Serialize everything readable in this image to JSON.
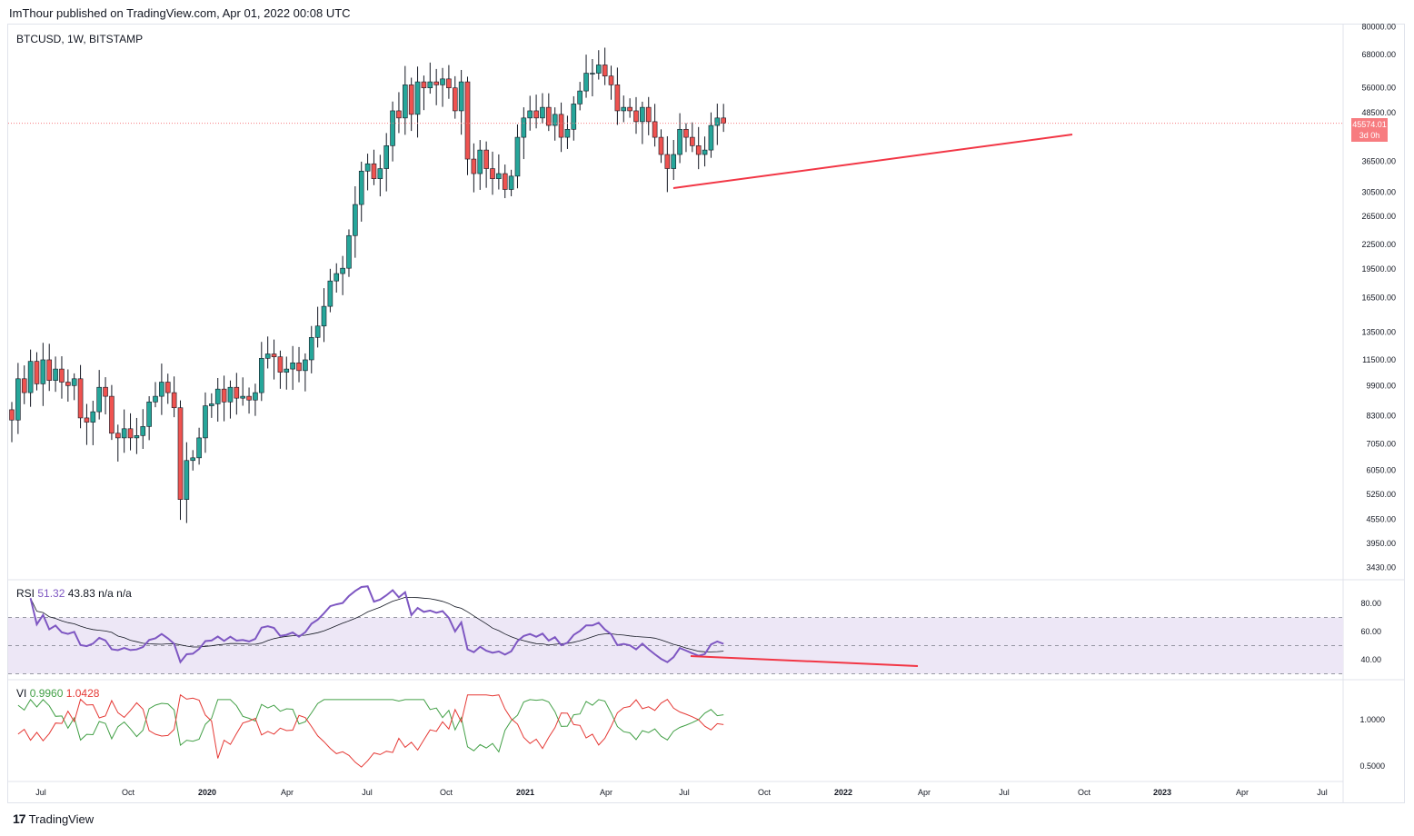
{
  "header": {
    "publisher_line": "ImThour published on TradingView.com, Apr 01, 2022 00:08 UTC"
  },
  "colors": {
    "up": "#26a69a",
    "down": "#ef5350",
    "rsi": "#7e57c2",
    "rsi_ma": "#131722",
    "vi_plus": "#43a047",
    "vi_minus": "#e53935",
    "trendline": "#f23645",
    "band": "#ede7f6"
  },
  "chart_data": [
    {
      "type": "candlestick",
      "title": "BTCUSD, 1W, BITSTAMP",
      "scale": "log",
      "y_ticks": [
        "80000.00",
        "68000.00",
        "56000.00",
        "48500.00",
        "36500.00",
        "30500.00",
        "26500.00",
        "22500.00",
        "19500.00",
        "16500.00",
        "13500.00",
        "11500.00",
        "9900.00",
        "8300.00",
        "7050.00",
        "6050.00",
        "5250.00",
        "4550.00",
        "3950.00",
        "3430.00"
      ],
      "x_ticks": [
        "Jul",
        "Oct",
        "2020",
        "Apr",
        "Jul",
        "Oct",
        "2021",
        "Apr",
        "Jul",
        "Oct",
        "2022",
        "Apr",
        "Jul",
        "Oct",
        "2023",
        "Apr",
        "Jul"
      ],
      "last_price": "45574.01",
      "countdown": "3d 0h",
      "closes": [
        8100,
        10300,
        9500,
        11400,
        10000,
        11500,
        10200,
        10900,
        10100,
        9900,
        10300,
        8200,
        8000,
        8500,
        9800,
        9300,
        7500,
        7300,
        7700,
        7300,
        7400,
        7800,
        9000,
        9300,
        10100,
        9500,
        8700,
        5100,
        6400,
        6500,
        7300,
        8800,
        8900,
        9700,
        9000,
        9800,
        9200,
        9300,
        9100,
        9500,
        11600,
        11900,
        11700,
        10700,
        10900,
        11300,
        10800,
        11500,
        13100,
        14000,
        15700,
        18200,
        19000,
        19600,
        23700,
        28400,
        34500,
        36000,
        33000,
        35000,
        40000,
        49000,
        47000,
        57000,
        48000,
        58000,
        56000,
        58000,
        57000,
        59000,
        56000,
        49000,
        58000,
        37000,
        34000,
        39000,
        35000,
        33000,
        34000,
        31000,
        33500,
        42000,
        47000,
        49000,
        47000,
        50000,
        45000,
        48000,
        42000,
        44000,
        51000,
        55000,
        61000,
        61000,
        64000,
        60000,
        57000,
        49000,
        50000,
        49000,
        46000,
        50000,
        46000,
        42000,
        38000,
        35000,
        38000,
        44000,
        42000,
        40000,
        38000,
        39000,
        45000,
        47000,
        45574
      ],
      "rsi_value": "51.32",
      "rsi_ma_value": "43.83",
      "rsi_extra": [
        "n/a",
        "n/a"
      ],
      "rsi_ticks": [
        "80.00",
        "60.00",
        "40.00"
      ],
      "vi_plus_value": "0.9960",
      "vi_minus_value": "1.0428",
      "vi_ticks": [
        "1.0000",
        "0.5000"
      ]
    }
  ],
  "footer": {
    "brand": "TradingView"
  }
}
